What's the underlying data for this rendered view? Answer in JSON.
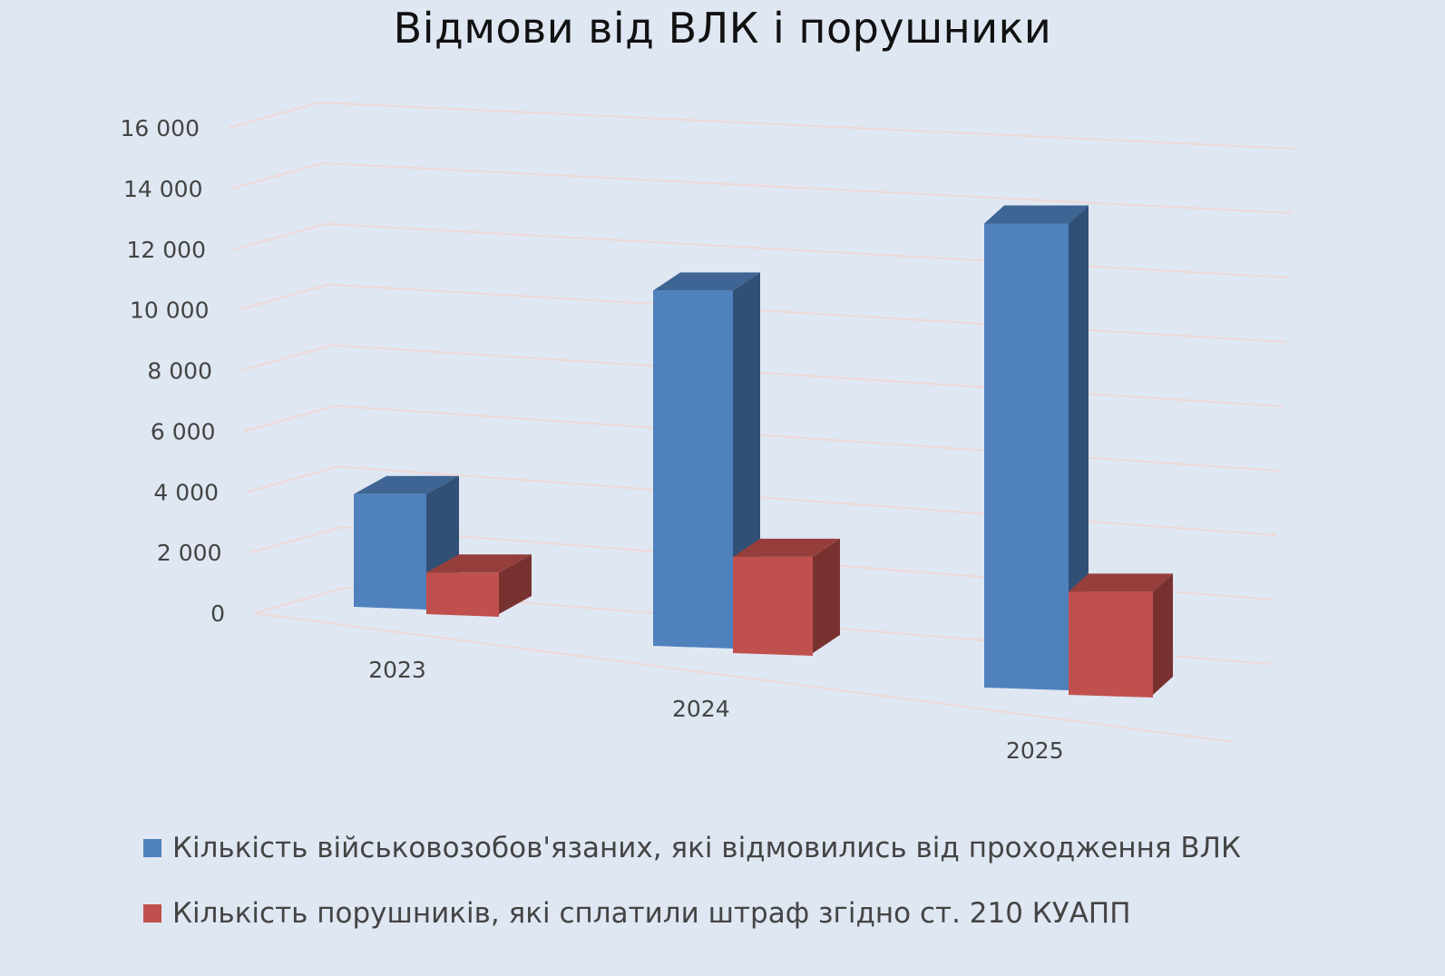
{
  "chart_data": {
    "type": "bar",
    "title": "Відмови від ВЛК і порушники",
    "categories": [
      "2023",
      "2024",
      "2025"
    ],
    "series": [
      {
        "name": "Кількість військовозобов'язаних, які відмовились від проходження ВЛК",
        "values": [
          3800,
          10700,
          12600
        ],
        "color": "#4f81bd"
      },
      {
        "name": "Кількість порушників, які сплатили штраф згідно ст. 210 КУАПП",
        "values": [
          1400,
          2900,
          2800
        ],
        "color": "#c0504d"
      }
    ],
    "ylim": [
      0,
      16000
    ],
    "yticks": [
      "0",
      "2 000",
      "4 000",
      "6 000",
      "8 000",
      "10 000",
      "12 000",
      "14 000",
      "16 000"
    ],
    "grid": true,
    "legend_position": "bottom",
    "projection": "3d-perspective"
  }
}
